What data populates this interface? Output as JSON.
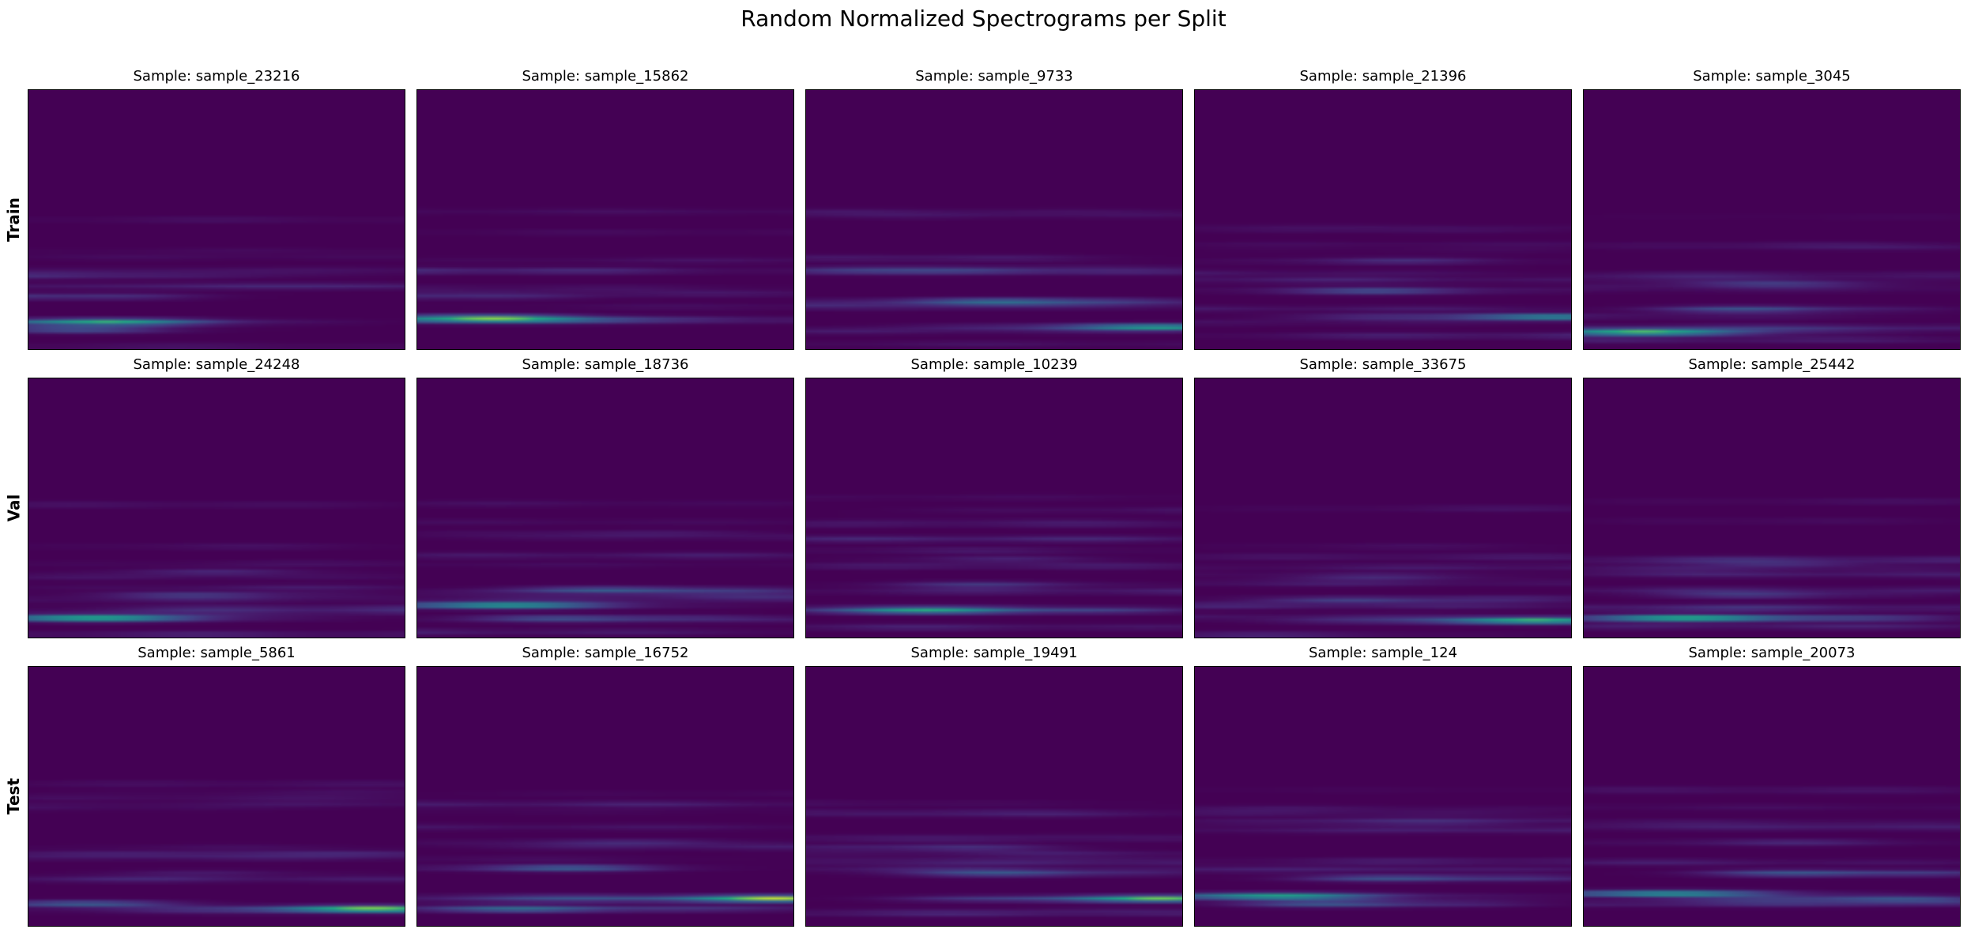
{
  "title": "Random Normalized Spectrograms per Split",
  "colormap": "viridis",
  "colors": {
    "background": "#ffffff",
    "low": "#440154",
    "mid": "#21918c",
    "high": "#fde725"
  },
  "chart_data": [
    {
      "type": "heatmap",
      "row": "Train",
      "title": "Sample: sample_23216",
      "axes": "off",
      "rel_bands": [
        [
          0.9,
          1.0,
          0.09,
          0.4
        ],
        [
          0.93,
          0.45,
          0.03,
          0.3
        ],
        [
          0.8,
          0.45,
          0.04,
          0.3
        ],
        [
          0.72,
          0.25,
          0.05,
          0.4
        ]
      ]
    },
    {
      "type": "heatmap",
      "row": "Train",
      "title": "Sample: sample_15862",
      "axes": "off",
      "rel_bands": [
        [
          0.89,
          0.9,
          0.09,
          0.4
        ],
        [
          0.88,
          0.45,
          0.04,
          0.3
        ],
        [
          0.8,
          0.3,
          0.05,
          0.3
        ],
        [
          0.7,
          0.2,
          0.05,
          0.4
        ]
      ]
    },
    {
      "type": "heatmap",
      "row": "Train",
      "title": "Sample: sample_9733",
      "axes": "off",
      "rel_bands": [
        [
          0.92,
          0.8,
          0.95,
          0.4
        ],
        [
          0.82,
          0.6,
          0.6,
          0.3
        ],
        [
          0.7,
          0.35,
          0.3,
          0.3
        ],
        [
          0.65,
          0.25,
          0.3,
          0.4
        ]
      ]
    },
    {
      "type": "heatmap",
      "row": "Train",
      "title": "Sample: sample_21396",
      "axes": "off",
      "rel_bands": [
        [
          0.88,
          0.75,
          0.9,
          0.4
        ],
        [
          0.78,
          0.35,
          0.5,
          0.3
        ],
        [
          0.66,
          0.25,
          0.5,
          0.3
        ],
        [
          0.54,
          0.15,
          0.5,
          0.4
        ]
      ]
    },
    {
      "type": "heatmap",
      "row": "Train",
      "title": "Sample: sample_3045",
      "axes": "off",
      "rel_bands": [
        [
          0.94,
          1.0,
          0.05,
          0.4
        ],
        [
          0.85,
          0.45,
          0.5,
          0.3
        ],
        [
          0.75,
          0.3,
          0.5,
          0.3
        ],
        [
          0.6,
          0.15,
          0.5,
          0.4
        ]
      ]
    },
    {
      "type": "heatmap",
      "row": "Val",
      "title": "Sample: sample_24248",
      "axes": "off",
      "rel_bands": [
        [
          0.93,
          1.0,
          0.08,
          0.4
        ],
        [
          0.84,
          0.3,
          0.5,
          0.3
        ],
        [
          0.75,
          0.2,
          0.5,
          0.3
        ],
        [
          0.65,
          0.12,
          0.5,
          0.4
        ]
      ]
    },
    {
      "type": "heatmap",
      "row": "Val",
      "title": "Sample: sample_18736",
      "axes": "off",
      "rel_bands": [
        [
          0.88,
          0.95,
          0.12,
          0.4
        ],
        [
          0.82,
          0.55,
          0.6,
          0.3
        ],
        [
          0.93,
          0.35,
          0.5,
          0.3
        ],
        [
          0.6,
          0.2,
          0.5,
          0.4
        ]
      ]
    },
    {
      "type": "heatmap",
      "row": "Val",
      "title": "Sample: sample_10239",
      "axes": "off",
      "rel_bands": [
        [
          0.9,
          0.9,
          0.4,
          0.4
        ],
        [
          0.8,
          0.3,
          0.5,
          0.3
        ],
        [
          0.7,
          0.2,
          0.5,
          0.3
        ],
        [
          0.55,
          0.1,
          0.5,
          0.4
        ]
      ]
    },
    {
      "type": "heatmap",
      "row": "Val",
      "title": "Sample: sample_33675",
      "axes": "off",
      "rel_bands": [
        [
          0.94,
          0.9,
          0.9,
          0.4
        ],
        [
          0.86,
          0.3,
          0.5,
          0.3
        ],
        [
          0.77,
          0.2,
          0.5,
          0.3
        ],
        [
          0.65,
          0.1,
          0.5,
          0.4
        ]
      ]
    },
    {
      "type": "heatmap",
      "row": "Val",
      "title": "Sample: sample_25442",
      "axes": "off",
      "rel_bands": [
        [
          0.93,
          1.0,
          0.35,
          0.4
        ],
        [
          0.84,
          0.3,
          0.5,
          0.3
        ],
        [
          0.72,
          0.2,
          0.5,
          0.3
        ],
        [
          0.55,
          0.12,
          0.5,
          0.4
        ]
      ]
    },
    {
      "type": "heatmap",
      "row": "Test",
      "title": "Sample: sample_5861",
      "axes": "off",
      "rel_bands": [
        [
          0.94,
          1.0,
          0.92,
          0.4
        ],
        [
          0.92,
          0.5,
          0.05,
          0.3
        ],
        [
          0.8,
          0.12,
          0.5,
          0.3
        ],
        [
          0.7,
          0.08,
          0.5,
          0.4
        ]
      ]
    },
    {
      "type": "heatmap",
      "row": "Test",
      "title": "Sample: sample_16752",
      "axes": "off",
      "rel_bands": [
        [
          0.9,
          0.95,
          0.93,
          0.4
        ],
        [
          0.78,
          0.55,
          0.35,
          0.3
        ],
        [
          0.94,
          0.45,
          0.35,
          0.3
        ],
        [
          0.68,
          0.25,
          0.5,
          0.4
        ]
      ]
    },
    {
      "type": "heatmap",
      "row": "Test",
      "title": "Sample: sample_19491",
      "axes": "off",
      "rel_bands": [
        [
          0.9,
          1.0,
          0.9,
          0.4
        ],
        [
          0.8,
          0.55,
          0.6,
          0.3
        ],
        [
          0.7,
          0.4,
          0.3,
          0.3
        ],
        [
          0.57,
          0.2,
          0.5,
          0.4
        ]
      ]
    },
    {
      "type": "heatmap",
      "row": "Test",
      "title": "Sample: sample_124",
      "axes": "off",
      "rel_bands": [
        [
          0.89,
          0.95,
          0.1,
          0.4
        ],
        [
          0.92,
          0.5,
          0.45,
          0.3
        ],
        [
          0.82,
          0.6,
          0.65,
          0.3
        ],
        [
          0.6,
          0.3,
          0.5,
          0.4
        ]
      ]
    },
    {
      "type": "heatmap",
      "row": "Test",
      "title": "Sample: sample_20073",
      "axes": "off",
      "rel_bands": [
        [
          0.88,
          0.9,
          0.1,
          0.4
        ],
        [
          0.8,
          0.7,
          0.7,
          0.3
        ],
        [
          0.9,
          0.5,
          0.7,
          0.3
        ],
        [
          0.68,
          0.25,
          0.5,
          0.4
        ]
      ]
    }
  ]
}
